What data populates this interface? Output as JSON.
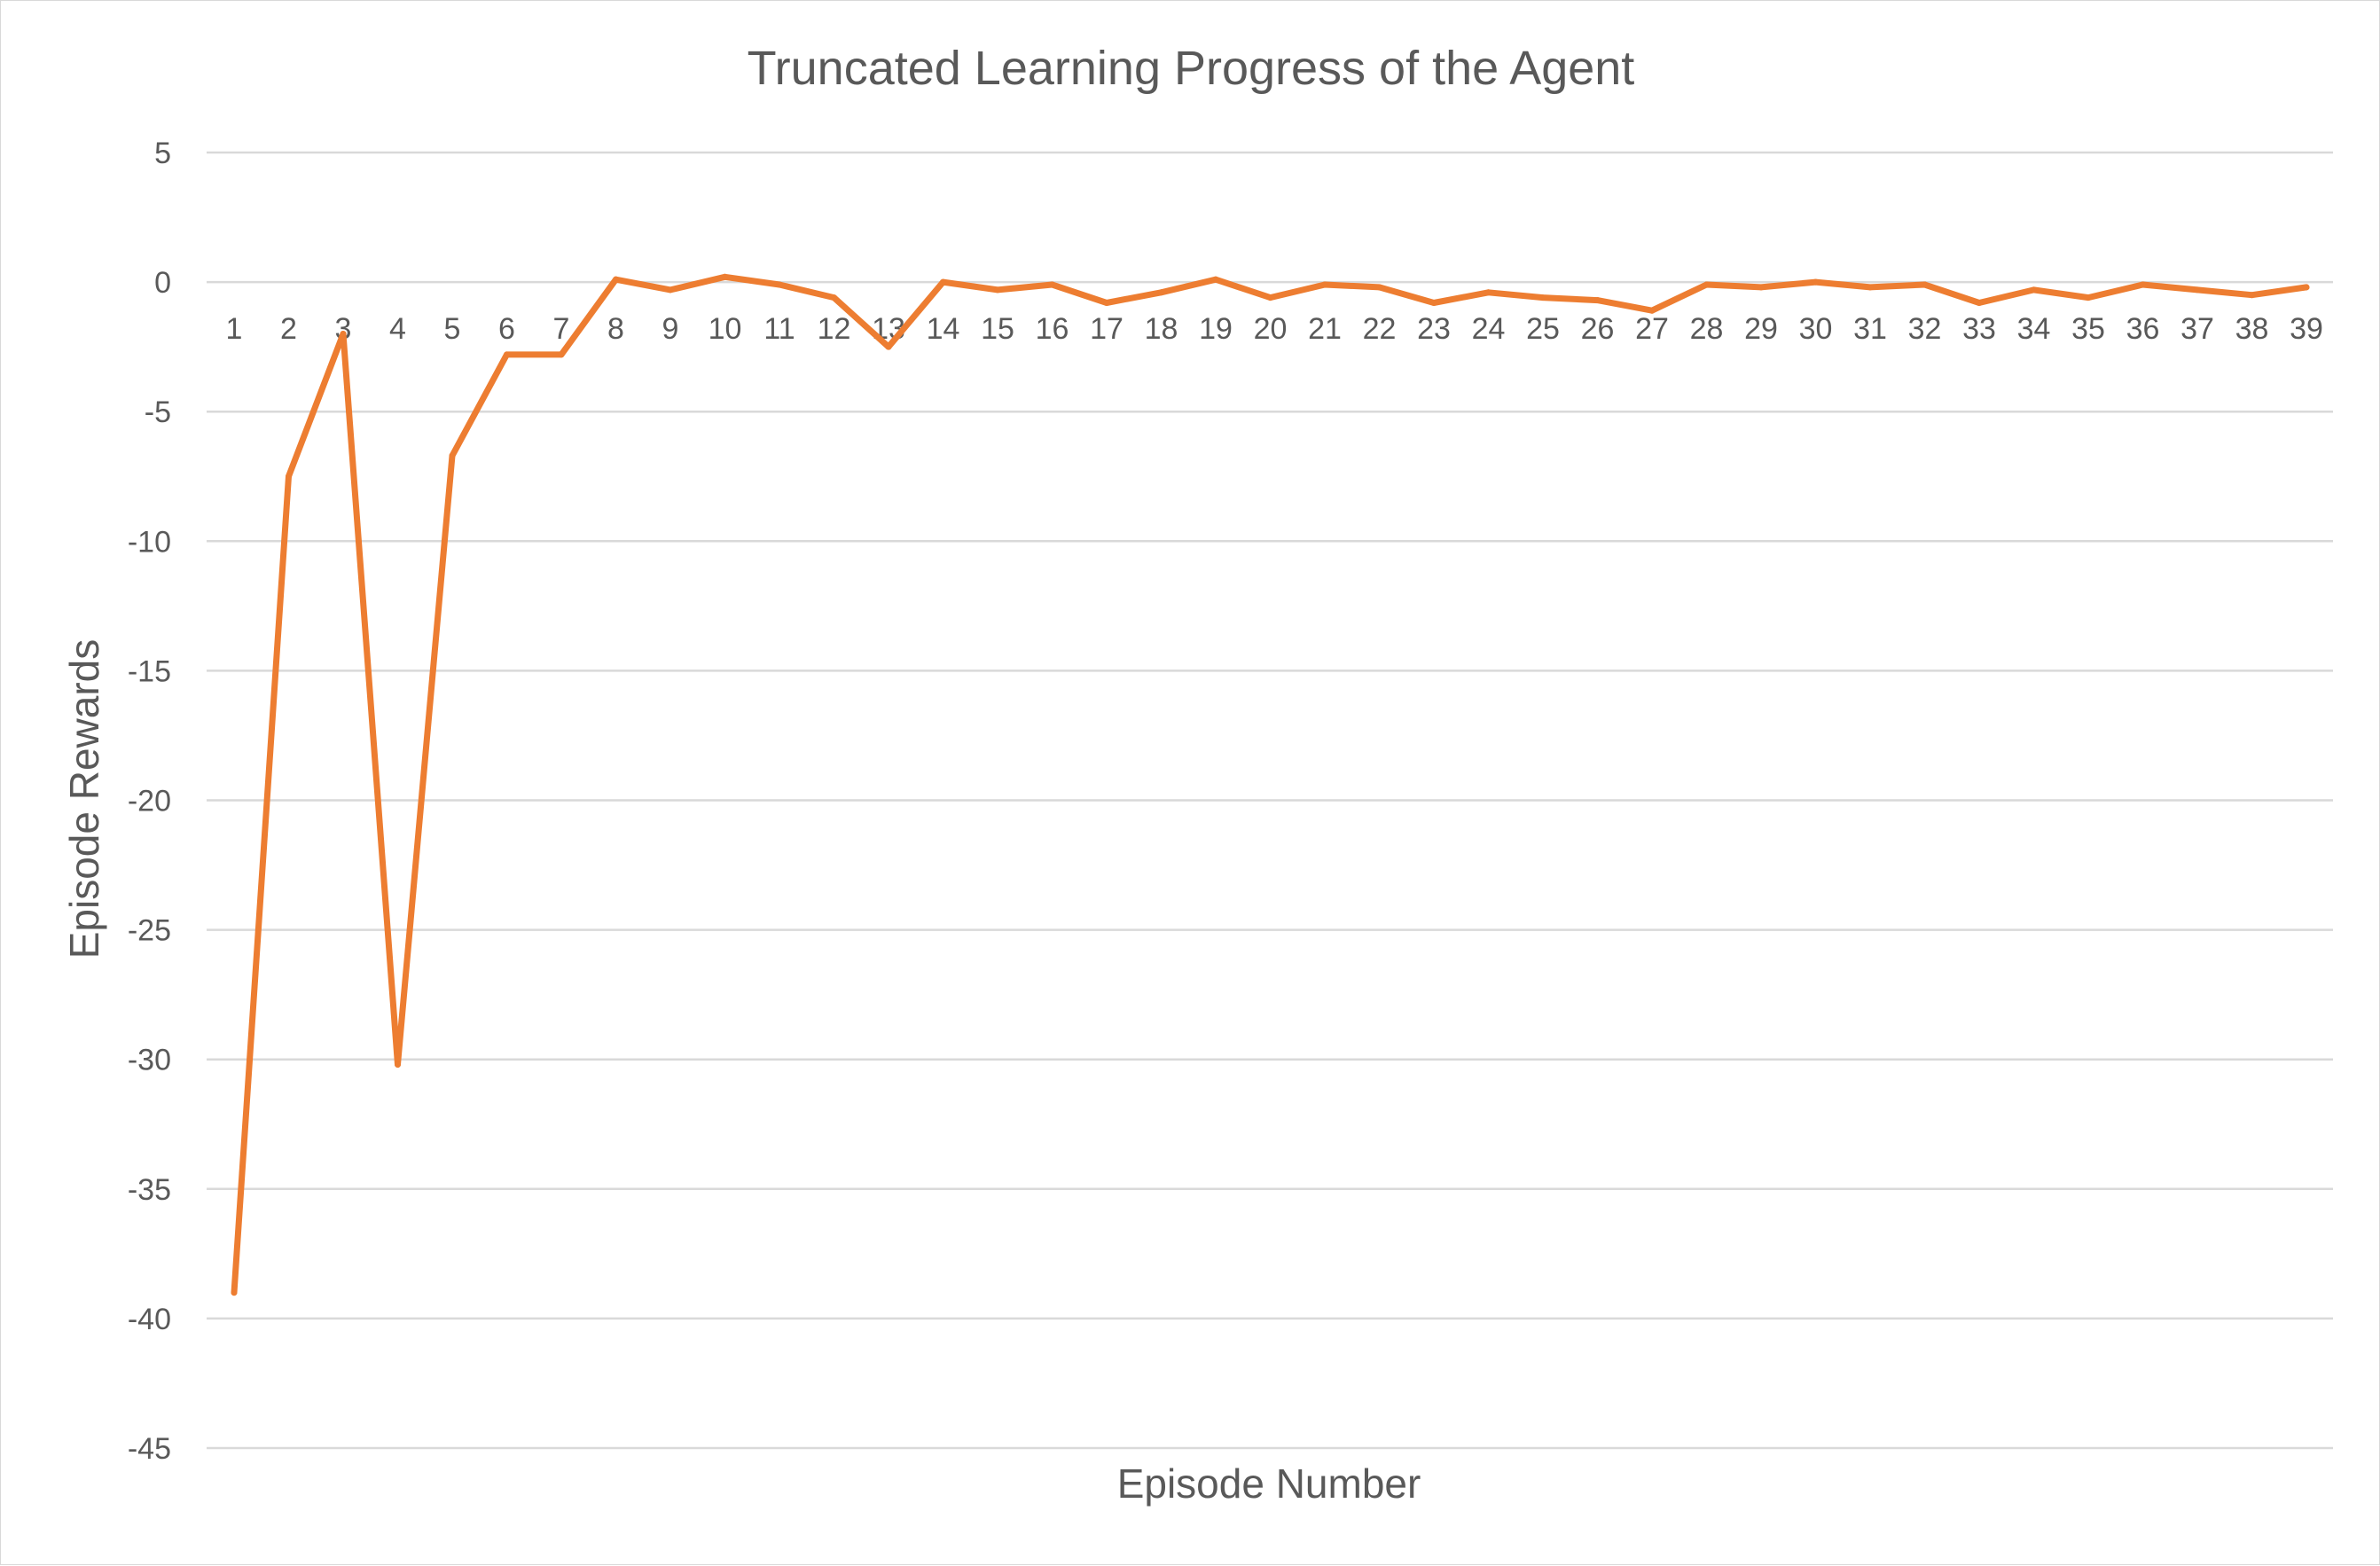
{
  "chart_data": {
    "type": "line",
    "title": "Truncated Learning Progress of the Agent",
    "xlabel": "Episode Number",
    "ylabel": "Episode Rewards",
    "ylim": [
      -45,
      5
    ],
    "ytick_step": 5,
    "grid": true,
    "legend": "none",
    "categories": [
      "1",
      "2",
      "3",
      "4",
      "5",
      "6",
      "7",
      "8",
      "9",
      "10",
      "11",
      "12",
      "13",
      "14",
      "15",
      "16",
      "17",
      "18",
      "19",
      "20",
      "21",
      "22",
      "23",
      "24",
      "25",
      "26",
      "27",
      "28",
      "29",
      "30",
      "31",
      "32",
      "33",
      "34",
      "35",
      "36",
      "37",
      "38",
      "39"
    ],
    "series": [
      {
        "color": "#ed7d31",
        "values": [
          -39,
          -7.5,
          -2,
          -30.2,
          -6.7,
          -2.8,
          -2.8,
          0.1,
          -0.3,
          0.2,
          -0.1,
          -0.6,
          -2.5,
          0,
          -0.3,
          -0.1,
          -0.8,
          -0.4,
          0.1,
          -0.6,
          -0.1,
          -0.2,
          -0.8,
          -0.4,
          -0.6,
          -0.7,
          -1.1,
          -0.1,
          -0.2,
          0,
          -0.2,
          -0.1,
          -0.8,
          -0.3,
          -0.6,
          -0.1,
          -0.3,
          -0.5,
          -0.2
        ]
      }
    ]
  }
}
